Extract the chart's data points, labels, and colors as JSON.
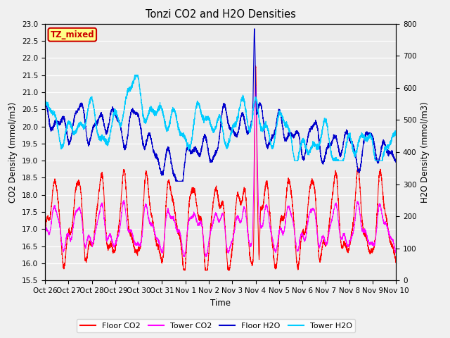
{
  "title": "Tonzi CO2 and H2O Densities",
  "xlabel": "Time",
  "ylabel_left": "CO2 Density (mmol/m3)",
  "ylabel_right": "H2O Density (mmol/m3)",
  "ylim_left": [
    15.5,
    23.0
  ],
  "ylim_right": [
    0,
    800
  ],
  "yticks_left": [
    15.5,
    16.0,
    16.5,
    17.0,
    17.5,
    18.0,
    18.5,
    19.0,
    19.5,
    20.0,
    20.5,
    21.0,
    21.5,
    22.0,
    22.5,
    23.0
  ],
  "yticks_right": [
    0,
    100,
    200,
    300,
    400,
    500,
    600,
    700,
    800
  ],
  "xtick_labels": [
    "Oct 26",
    "Oct 27",
    "Oct 28",
    "Oct 29",
    "Oct 30",
    "Oct 31",
    "Nov 1",
    "Nov 2",
    "Nov 3",
    "Nov 4",
    "Nov 5",
    "Nov 6",
    "Nov 7",
    "Nov 8",
    "Nov 9",
    "Nov 10"
  ],
  "colors": {
    "floor_co2": "#FF0000",
    "tower_co2": "#FF00FF",
    "floor_h2o": "#0000CC",
    "tower_h2o": "#00CCFF"
  },
  "legend_labels": [
    "Floor CO2",
    "Tower CO2",
    "Floor H2O",
    "Tower H2O"
  ],
  "annotation_text": "TZ_mixed",
  "annotation_bg": "#FFFF88",
  "annotation_edge": "#CC0000",
  "num_points": 3600,
  "days": 15
}
